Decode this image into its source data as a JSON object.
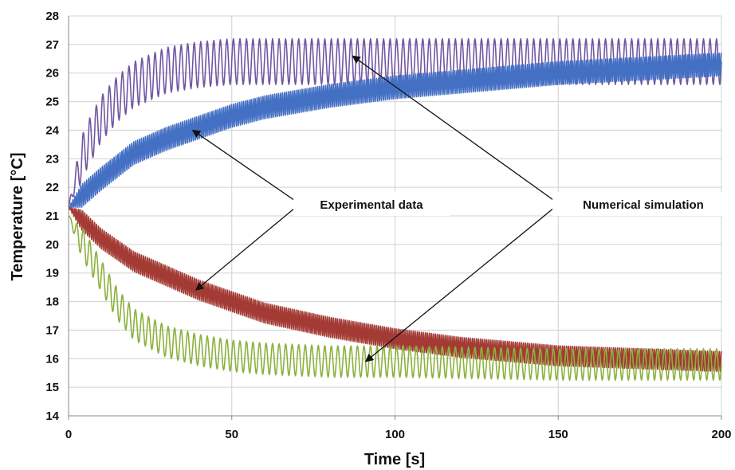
{
  "chart_data": {
    "type": "line",
    "xlabel": "Time [s]",
    "ylabel": "Temperature [°C]",
    "xlim": [
      0,
      200
    ],
    "ylim": [
      14,
      28
    ],
    "x_ticks": [
      "0",
      "50",
      "100",
      "150",
      "200"
    ],
    "y_ticks": [
      "14",
      "15",
      "16",
      "17",
      "18",
      "19",
      "20",
      "21",
      "22",
      "23",
      "24",
      "25",
      "26",
      "27",
      "28"
    ],
    "grid": true,
    "legend": "none",
    "series": [
      {
        "kind": "numerical-hot",
        "color": "#7057A3",
        "x": [
          0,
          2,
          5,
          10,
          15,
          20,
          30,
          40,
          50,
          60,
          80,
          100,
          150,
          200
        ],
        "y": [
          21.3,
          22.2,
          23.3,
          24.4,
          25.1,
          25.6,
          26.1,
          26.3,
          26.4,
          26.4,
          26.4,
          26.4,
          26.4,
          26.4
        ],
        "oscillation_amplitude": 0.8,
        "oscillation_period": 2.0
      },
      {
        "kind": "experimental-hot",
        "color": "#4470C4",
        "x": [
          0,
          10,
          20,
          30,
          40,
          50,
          60,
          80,
          100,
          120,
          150,
          200
        ],
        "y": [
          21.3,
          22.3,
          23.2,
          23.7,
          24.1,
          24.5,
          24.8,
          25.2,
          25.5,
          25.7,
          26.0,
          26.3
        ],
        "oscillation_amplitude": 0.4,
        "oscillation_period": 0.6
      },
      {
        "kind": "experimental-cold",
        "color": "#A33B34",
        "x": [
          0,
          10,
          20,
          30,
          40,
          50,
          60,
          80,
          100,
          120,
          150,
          200
        ],
        "y": [
          21.3,
          20.2,
          19.4,
          18.9,
          18.4,
          18.0,
          17.6,
          17.1,
          16.7,
          16.4,
          16.1,
          15.9
        ],
        "oscillation_amplitude": 0.35,
        "oscillation_period": 0.6
      },
      {
        "kind": "numerical-cold",
        "color": "#8BB13E",
        "x": [
          0,
          2,
          5,
          10,
          15,
          20,
          30,
          40,
          50,
          60,
          80,
          100,
          150,
          200
        ],
        "y": [
          21.0,
          20.5,
          19.9,
          18.9,
          17.9,
          17.2,
          16.6,
          16.3,
          16.1,
          16.0,
          15.9,
          15.9,
          15.8,
          15.8
        ],
        "oscillation_amplitude": 0.55,
        "oscillation_period": 2.0
      }
    ],
    "annotations": [
      {
        "text": "Experimental data",
        "arrows_to": [
          {
            "x": 38,
            "y": 24.0
          },
          {
            "x": 39,
            "y": 18.4
          }
        ]
      },
      {
        "text": "Numerical simulation",
        "arrows_to": [
          {
            "x": 87,
            "y": 26.6
          },
          {
            "x": 91,
            "y": 15.9
          }
        ]
      }
    ]
  }
}
